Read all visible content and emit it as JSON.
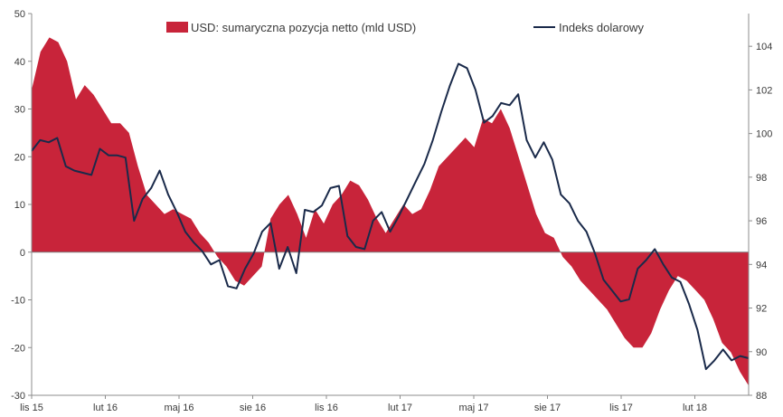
{
  "chart_data": {
    "type": "area+line",
    "title": "",
    "legend": {
      "placement": "top",
      "items": [
        {
          "label": "USD: sumaryczna pozycja netto (mld USD)",
          "marker": "area",
          "color": "#c8243a"
        },
        {
          "label": "Indeks dolarowy",
          "marker": "line",
          "color": "#1a2a4a"
        }
      ]
    },
    "x_ticks": [
      "lis 15",
      "lut 16",
      "maj 16",
      "sie 16",
      "lis 16",
      "lut 17",
      "maj 17",
      "sie 17",
      "lis 17",
      "lut 18"
    ],
    "left_axis": {
      "min": -30,
      "max": 50,
      "ticks": [
        -30,
        -20,
        -10,
        0,
        10,
        20,
        30,
        40,
        50
      ]
    },
    "right_axis": {
      "min": 88,
      "max": 105.5,
      "ticks": [
        88,
        90,
        92,
        94,
        96,
        98,
        100,
        102,
        104
      ]
    },
    "series": [
      {
        "name": "USD: sumaryczna pozycja netto (mld USD)",
        "axis": "left",
        "type": "area",
        "color": "#c8243a",
        "values": [
          34,
          42,
          45,
          44,
          40,
          32,
          35,
          33,
          30,
          27,
          27,
          25,
          18,
          12,
          10,
          8,
          9,
          8,
          7,
          4,
          2,
          -1,
          -3,
          -6,
          -7,
          -5,
          -3,
          7,
          10,
          12,
          8,
          3,
          9,
          6,
          10,
          12,
          15,
          14,
          11,
          7,
          4,
          7,
          10,
          8,
          9,
          13,
          18,
          20,
          22,
          24,
          22,
          28,
          27,
          30,
          26,
          20,
          14,
          8,
          4,
          3,
          -1,
          -3,
          -6,
          -8,
          -10,
          -12,
          -15,
          -18,
          -20,
          -20,
          -17,
          -12,
          -8,
          -5,
          -6,
          -8,
          -10,
          -14,
          -19,
          -21,
          -25,
          -28
        ]
      },
      {
        "name": "Indeks dolarowy",
        "axis": "right",
        "type": "line",
        "color": "#1a2a4a",
        "values": [
          99.2,
          99.7,
          99.6,
          99.8,
          98.5,
          98.3,
          98.2,
          98.1,
          99.3,
          99.0,
          99.0,
          98.9,
          96.0,
          97.0,
          97.5,
          98.3,
          97.2,
          96.4,
          95.5,
          95.0,
          94.6,
          94.0,
          94.2,
          93.0,
          92.9,
          93.8,
          94.5,
          95.5,
          95.9,
          93.8,
          94.8,
          93.6,
          96.5,
          96.4,
          96.7,
          97.5,
          97.6,
          95.3,
          94.8,
          94.7,
          96.0,
          96.4,
          95.5,
          96.2,
          97.0,
          97.8,
          98.6,
          99.7,
          101.0,
          102.2,
          103.2,
          103.0,
          102.0,
          100.5,
          100.8,
          101.4,
          101.3,
          101.8,
          99.7,
          98.9,
          99.6,
          98.8,
          97.2,
          96.8,
          96.0,
          95.5,
          94.5,
          93.3,
          92.8,
          92.3,
          92.4,
          93.8,
          94.2,
          94.7,
          94.0,
          93.4,
          93.2,
          92.2,
          91.0,
          89.2,
          89.6,
          90.1,
          89.6,
          89.8,
          89.7
        ]
      }
    ],
    "grid": false
  }
}
